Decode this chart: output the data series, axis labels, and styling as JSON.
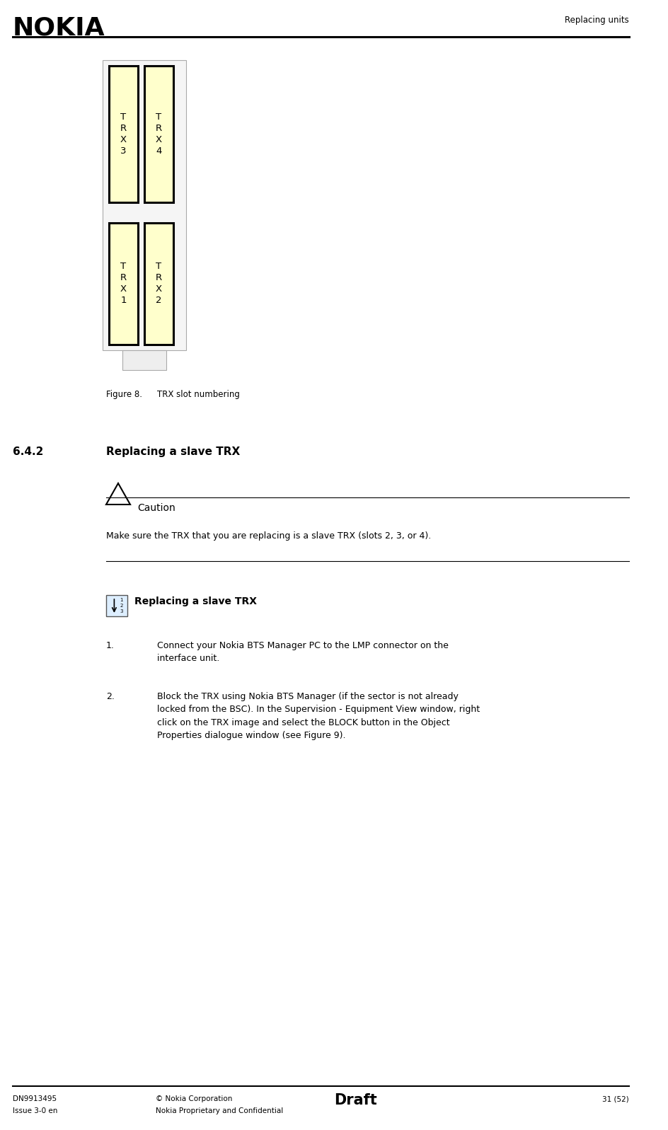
{
  "page_width": 9.44,
  "page_height": 15.97,
  "bg_color": "#ffffff",
  "header_logo": "NOKIA",
  "header_right": "Replacing units",
  "footer_left1": "DN9913495",
  "footer_left2": "Issue 3-0 en",
  "footer_mid1": "© Nokia Corporation",
  "footer_mid2": "Nokia Proprietary and Confidential",
  "footer_bold": "Draft",
  "footer_right": "31 (52)",
  "trx_box_bg": "#ffffcc",
  "trx_box_border": "#000000",
  "figure_caption_num": "Figure 8.",
  "figure_caption_text": "TRX slot numbering",
  "section_num": "6.4.2",
  "section_title": "Replacing a slave TRX",
  "caution_title": "Caution",
  "caution_text": "Make sure the TRX that you are replacing is a slave TRX (slots 2, 3, or 4).",
  "step_title": "Replacing a slave TRX",
  "step1": "Connect your Nokia BTS Manager PC to the LMP connector on the\ninterface unit.",
  "step2_part1": "Block the TRX using Nokia BTS Manager (if the sector is not already\nlocked from the BSC). In the ",
  "step2_italic1": "Supervision - Equipment View",
  "step2_part2": " window, right\nclick on the TRX image and select the BLOCK button in the ",
  "step2_italic2": "Object\nProperties",
  "step2_part3": " dialogue window (see Figure 9)."
}
